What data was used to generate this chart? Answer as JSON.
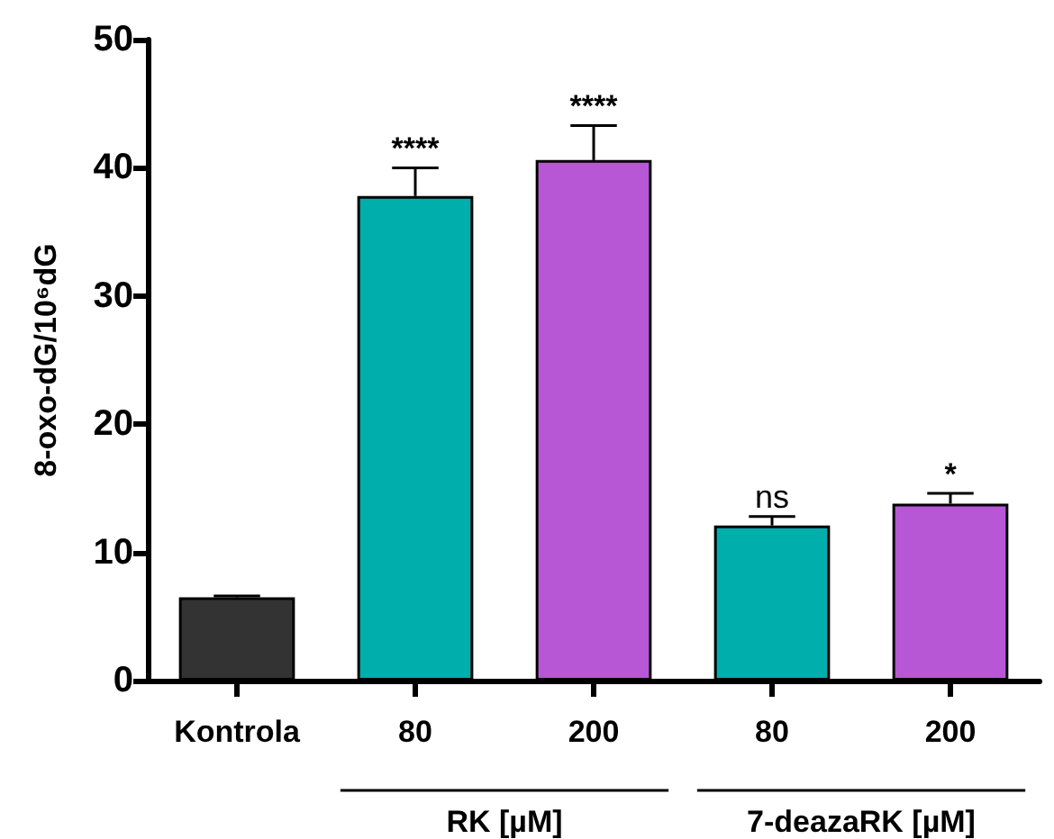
{
  "chart_data": {
    "type": "bar",
    "ylabel": "8-oxo-dG/10⁶dG",
    "categories": [
      "Kontrola",
      "80",
      "200",
      "80",
      "200"
    ],
    "values": [
      6.5,
      37.8,
      40.6,
      12.1,
      13.8
    ],
    "colors": [
      "#333333",
      "#00aeac",
      "#b857d6",
      "#00aeac",
      "#b857d6"
    ],
    "errors": [
      0.1,
      2.2,
      2.7,
      0.7,
      0.8
    ],
    "value_labels": [
      null,
      "****",
      "****",
      "ns",
      "*"
    ],
    "annotations": [
      "RK [µM]",
      "7-deazaRK [µM]"
    ],
    "ylim": [
      0,
      50
    ],
    "yticks": [
      0,
      10,
      20,
      30,
      40,
      50
    ],
    "grid": false
  }
}
